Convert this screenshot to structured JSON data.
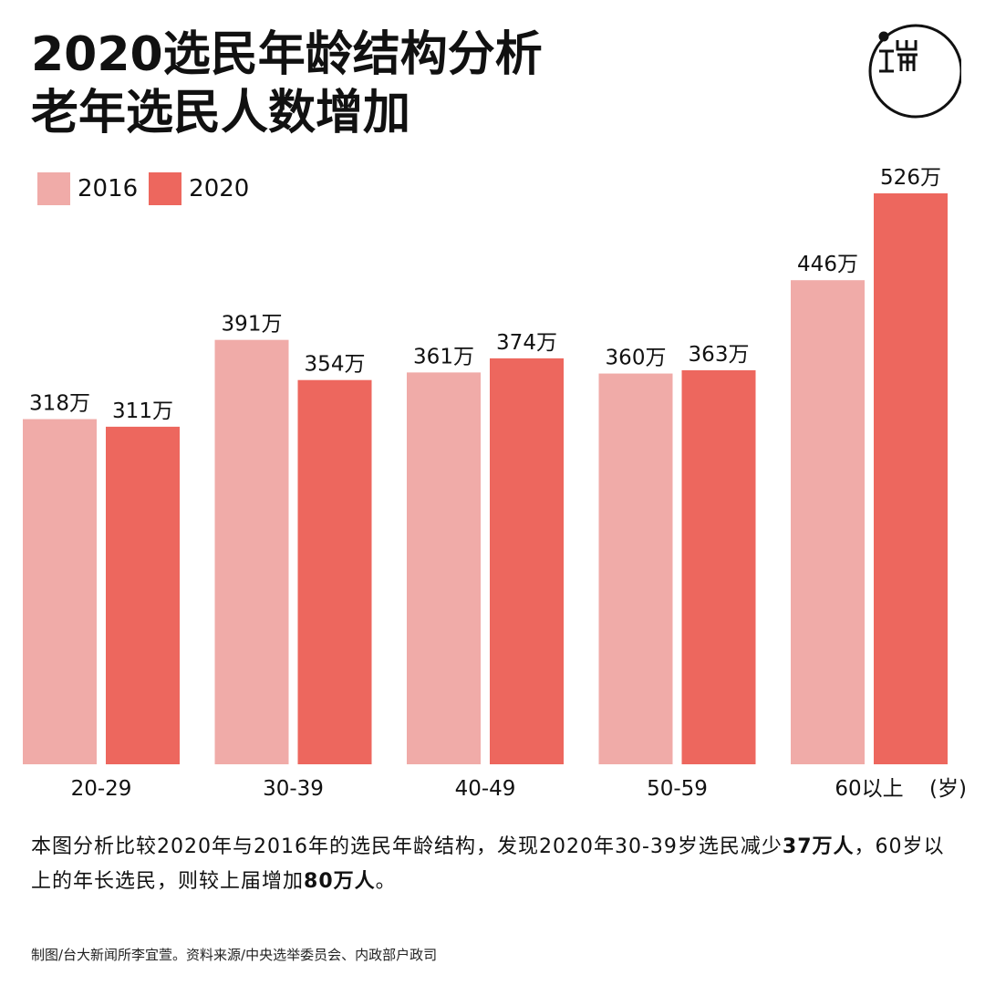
{
  "title": {
    "line1": "2020选民年龄结构分析",
    "line2": "老年选民人数增加"
  },
  "logo": {
    "icon": "initium-media-logo",
    "text": "端"
  },
  "colors": {
    "series2016": "#f0aba8",
    "series2020": "#ed675e",
    "text": "#111111"
  },
  "chart_data": {
    "type": "bar",
    "categories": [
      "20-29",
      "30-39",
      "40-49",
      "50-59",
      "60以上"
    ],
    "xlabel": "(岁)",
    "ylabel": "",
    "ylim": [
      0,
      526
    ],
    "grid": false,
    "legend": "top-left",
    "value_suffix": "万",
    "series": [
      {
        "name": "2016",
        "values": [
          318,
          391,
          361,
          360,
          446
        ]
      },
      {
        "name": "2020",
        "values": [
          311,
          354,
          374,
          363,
          526
        ]
      }
    ]
  },
  "caption": {
    "part1": "本图分析比较2020年与2016年的选民年龄结构，发现2020年30-39岁选民减少",
    "bold1": "37万人",
    "part2": "，60岁以上的年长选民，则较上届增加",
    "bold2": "80万人",
    "part3": "。"
  },
  "source": "制图/台大新闻所李宜萱。资料来源/中央选举委员会、内政部户政司"
}
